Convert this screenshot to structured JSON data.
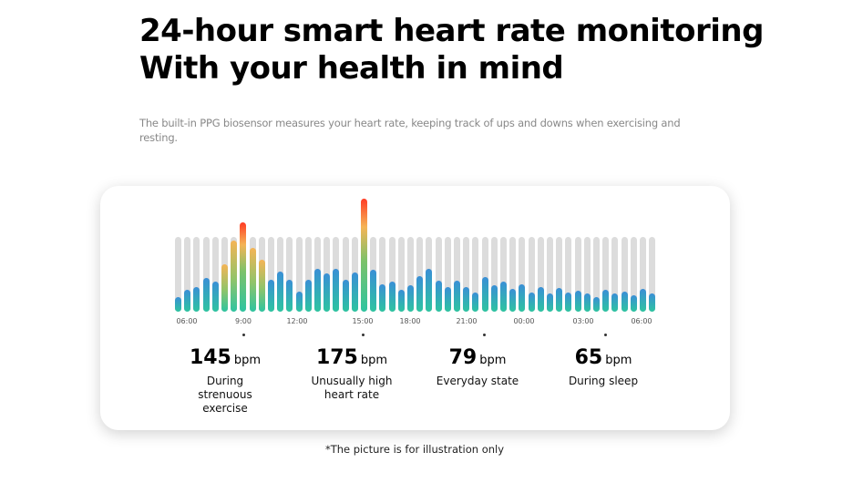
{
  "header": {
    "title_line1": "24-hour smart heart rate monitoring",
    "title_line2": "With your health in mind",
    "subtitle": "The built-in PPG biosensor measures your heart rate, keeping track of ups and downs when exercising and resting."
  },
  "chart_data": {
    "type": "bar",
    "values": [
      0.2,
      0.29,
      0.33,
      0.45,
      0.4,
      0.63,
      0.95,
      1.2,
      0.85,
      0.69,
      0.43,
      0.54,
      0.43,
      0.27,
      0.43,
      0.57,
      0.51,
      0.57,
      0.43,
      0.53,
      1.51,
      0.56,
      0.37,
      0.4,
      0.29,
      0.35,
      0.47,
      0.57,
      0.41,
      0.33,
      0.42,
      0.33,
      0.26,
      0.46,
      0.35,
      0.4,
      0.31,
      0.37,
      0.26,
      0.33,
      0.25,
      0.32,
      0.26,
      0.28,
      0.24,
      0.2,
      0.29,
      0.24,
      0.27,
      0.22,
      0.3,
      0.24
    ],
    "value_unit": "fraction of baseline track height",
    "x_ticks": [
      "06:00",
      "9:00",
      "12:00",
      "15:00",
      "18:00",
      "21:00",
      "00:00",
      "03:00",
      "06:00"
    ],
    "colors": {
      "low": "#2ec4a0",
      "mid": "#3a8fd6",
      "warm": "#f5b455",
      "hot": "#ff3b24",
      "track": "#dcdcdc"
    }
  },
  "stats": [
    {
      "value": "145",
      "unit": "bpm",
      "label": "During strenuous exercise"
    },
    {
      "value": "175",
      "unit": "bpm",
      "label": "Unusually high heart rate"
    },
    {
      "value": "79",
      "unit": "bpm",
      "label": "Everyday state"
    },
    {
      "value": "65",
      "unit": "bpm",
      "label": "During sleep"
    }
  ],
  "footnote": "*The picture is for illustration only"
}
